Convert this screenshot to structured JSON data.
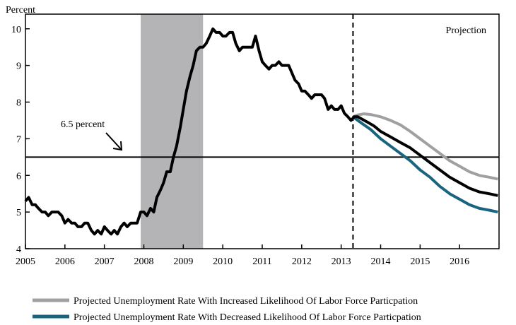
{
  "chart_data": {
    "type": "line",
    "ylabel": "Percent",
    "ylim": [
      4,
      10.4
    ],
    "xlim": [
      2005,
      2017
    ],
    "x_ticks": [
      "2005",
      "2006",
      "2007",
      "2008",
      "2009",
      "2010",
      "2011",
      "2012",
      "2013",
      "2014",
      "2015",
      "2016"
    ],
    "y_ticks": [
      "4",
      "5",
      "6",
      "7",
      "8",
      "9",
      "10"
    ],
    "recession_shading": {
      "start": 2007.92,
      "end": 2009.5,
      "color": "#b4b4b6"
    },
    "projection_start": 2013.3,
    "projection_label": "Projection",
    "threshold": {
      "value": 6.5,
      "label": "6.5 percent"
    },
    "colors": {
      "baseline": "#000000",
      "increased": "#a0a0a0",
      "decreased": "#19647e"
    },
    "series": [
      {
        "key": "baseline",
        "x": [
          2005.0,
          2005.08,
          2005.17,
          2005.25,
          2005.33,
          2005.42,
          2005.5,
          2005.58,
          2005.67,
          2005.75,
          2005.83,
          2005.92,
          2006.0,
          2006.08,
          2006.17,
          2006.25,
          2006.33,
          2006.42,
          2006.5,
          2006.58,
          2006.67,
          2006.75,
          2006.83,
          2006.92,
          2007.0,
          2007.08,
          2007.17,
          2007.25,
          2007.33,
          2007.42,
          2007.5,
          2007.58,
          2007.67,
          2007.75,
          2007.83,
          2007.92,
          2008.0,
          2008.08,
          2008.17,
          2008.25,
          2008.33,
          2008.42,
          2008.5,
          2008.58,
          2008.67,
          2008.75,
          2008.83,
          2008.92,
          2009.0,
          2009.08,
          2009.17,
          2009.25,
          2009.33,
          2009.42,
          2009.5,
          2009.58,
          2009.67,
          2009.75,
          2009.83,
          2009.92,
          2010.0,
          2010.08,
          2010.17,
          2010.25,
          2010.33,
          2010.42,
          2010.5,
          2010.58,
          2010.67,
          2010.75,
          2010.83,
          2010.92,
          2011.0,
          2011.08,
          2011.17,
          2011.25,
          2011.33,
          2011.42,
          2011.5,
          2011.58,
          2011.67,
          2011.75,
          2011.83,
          2011.92,
          2012.0,
          2012.08,
          2012.17,
          2012.25,
          2012.33,
          2012.42,
          2012.5,
          2012.58,
          2012.67,
          2012.75,
          2012.83,
          2012.92,
          2013.0,
          2013.08,
          2013.17,
          2013.25,
          2013.33,
          2013.42,
          2013.5,
          2013.67,
          2013.83,
          2014.0,
          2014.25,
          2014.5,
          2014.75,
          2015.0,
          2015.25,
          2015.5,
          2015.75,
          2016.0,
          2016.25,
          2016.5,
          2016.75,
          2016.97
        ],
        "values": [
          5.3,
          5.4,
          5.2,
          5.2,
          5.1,
          5.0,
          5.0,
          4.9,
          5.0,
          5.0,
          5.0,
          4.9,
          4.7,
          4.8,
          4.7,
          4.7,
          4.6,
          4.6,
          4.7,
          4.7,
          4.5,
          4.4,
          4.5,
          4.4,
          4.6,
          4.5,
          4.4,
          4.5,
          4.4,
          4.6,
          4.7,
          4.6,
          4.7,
          4.7,
          4.7,
          5.0,
          5.0,
          4.9,
          5.1,
          5.0,
          5.4,
          5.6,
          5.8,
          6.1,
          6.1,
          6.5,
          6.8,
          7.3,
          7.8,
          8.3,
          8.7,
          9.0,
          9.4,
          9.5,
          9.5,
          9.6,
          9.8,
          10.0,
          9.9,
          9.9,
          9.8,
          9.8,
          9.9,
          9.9,
          9.6,
          9.4,
          9.5,
          9.5,
          9.5,
          9.5,
          9.8,
          9.4,
          9.1,
          9.0,
          8.9,
          9.0,
          9.0,
          9.1,
          9.0,
          9.0,
          9.0,
          8.8,
          8.6,
          8.5,
          8.3,
          8.3,
          8.2,
          8.1,
          8.2,
          8.2,
          8.2,
          8.1,
          7.8,
          7.9,
          7.8,
          7.8,
          7.9,
          7.7,
          7.6,
          7.5,
          7.6,
          7.6,
          7.55,
          7.45,
          7.35,
          7.2,
          7.05,
          6.9,
          6.75,
          6.55,
          6.35,
          6.15,
          5.95,
          5.8,
          5.65,
          5.55,
          5.5,
          5.45
        ]
      },
      {
        "key": "increased",
        "name": "Projected Unemployment Rate With Increased Likelihood Of Labor Force Particpation",
        "x": [
          2013.3,
          2013.42,
          2013.58,
          2013.75,
          2014.0,
          2014.25,
          2014.5,
          2014.75,
          2015.0,
          2015.25,
          2015.5,
          2015.75,
          2016.0,
          2016.25,
          2016.5,
          2016.75,
          2016.97
        ],
        "values": [
          7.6,
          7.65,
          7.68,
          7.66,
          7.6,
          7.5,
          7.38,
          7.2,
          7.0,
          6.8,
          6.6,
          6.4,
          6.25,
          6.1,
          6.0,
          5.95,
          5.9
        ]
      },
      {
        "key": "decreased",
        "name": "Projected Unemployment Rate With Decreased Likelihood Of Labor Force Particpation",
        "x": [
          2013.3,
          2013.42,
          2013.58,
          2013.75,
          2014.0,
          2014.25,
          2014.5,
          2014.75,
          2015.0,
          2015.25,
          2015.5,
          2015.75,
          2016.0,
          2016.25,
          2016.5,
          2016.75,
          2016.97
        ],
        "values": [
          7.6,
          7.5,
          7.38,
          7.25,
          7.0,
          6.8,
          6.6,
          6.4,
          6.15,
          5.95,
          5.7,
          5.5,
          5.35,
          5.2,
          5.1,
          5.05,
          5.0
        ]
      }
    ]
  }
}
